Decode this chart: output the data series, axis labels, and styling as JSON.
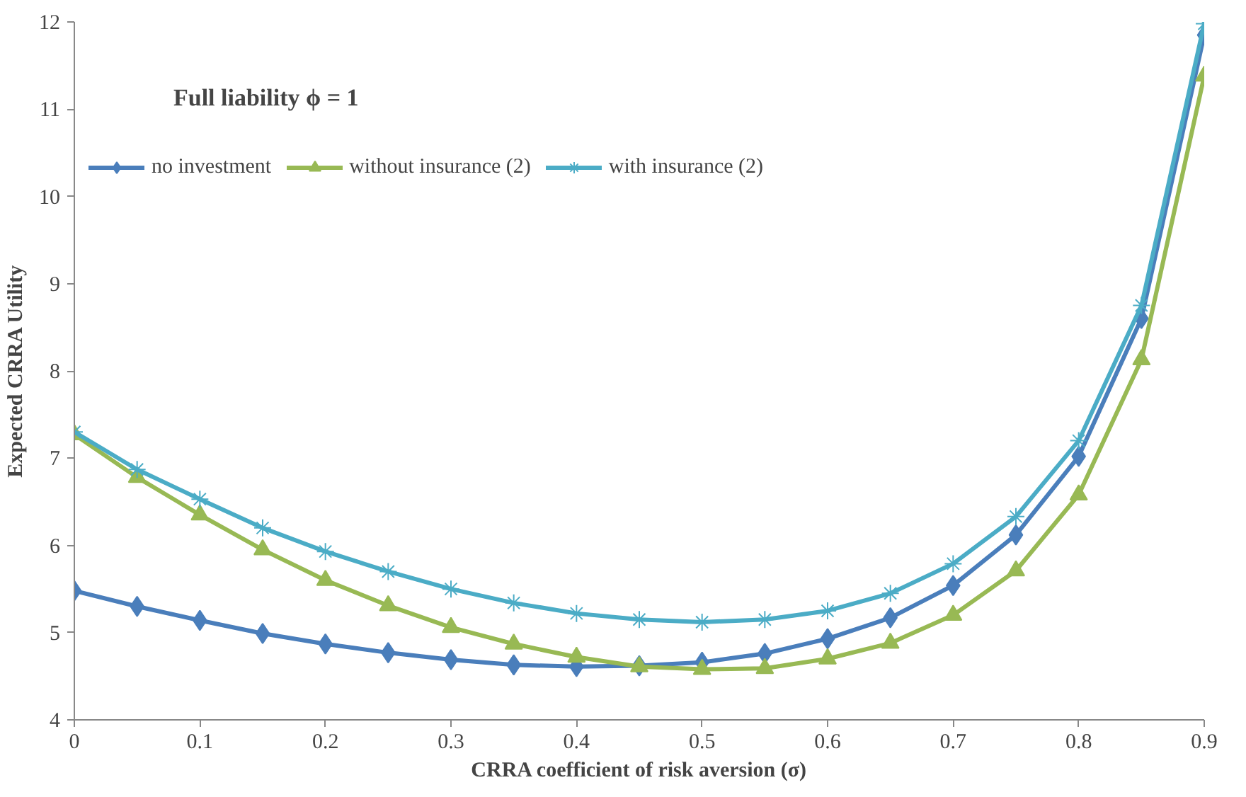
{
  "chart_data": {
    "type": "line",
    "xlabel": "CRRA coefficient of risk aversion (σ)",
    "ylabel": "Expected CRRA Utility",
    "annotations": [
      "Full liability    ϕ = 1"
    ],
    "x": [
      0,
      0.05,
      0.1,
      0.15,
      0.2,
      0.25,
      0.3,
      0.35,
      0.4,
      0.45,
      0.5,
      0.55,
      0.6,
      0.65,
      0.7,
      0.75,
      0.8,
      0.85,
      0.9
    ],
    "series": [
      {
        "name": "no investment",
        "color": "#4a7ebb",
        "marker": "diamond",
        "values": [
          5.48,
          5.3,
          5.14,
          4.99,
          4.87,
          4.77,
          4.69,
          4.63,
          4.61,
          4.62,
          4.66,
          4.76,
          4.93,
          5.17,
          5.54,
          6.12,
          7.02,
          8.6,
          11.85
        ]
      },
      {
        "name": "without insurance (2)",
        "color": "#98b954",
        "marker": "triangle",
        "values": [
          7.27,
          6.78,
          6.35,
          5.95,
          5.6,
          5.31,
          5.06,
          4.87,
          4.72,
          4.61,
          4.58,
          4.59,
          4.7,
          4.88,
          5.2,
          5.71,
          6.58,
          8.13,
          11.38
        ]
      },
      {
        "name": "with insurance (2)",
        "color": "#4bacc6",
        "marker": "cross",
        "values": [
          7.3,
          6.87,
          6.53,
          6.2,
          5.93,
          5.7,
          5.5,
          5.34,
          5.22,
          5.15,
          5.12,
          5.15,
          5.25,
          5.45,
          5.79,
          6.33,
          7.2,
          8.75,
          11.98
        ]
      }
    ],
    "xlim": [
      0,
      0.9
    ],
    "ylim": [
      4,
      12
    ],
    "xticks": [
      0,
      0.1,
      0.2,
      0.3,
      0.4,
      0.5,
      0.6,
      0.7,
      0.8,
      0.9
    ],
    "yticks": [
      4,
      5,
      6,
      7,
      8,
      9,
      10,
      11,
      12
    ],
    "grid": false,
    "legend": "top left",
    "line_style": "solid"
  }
}
